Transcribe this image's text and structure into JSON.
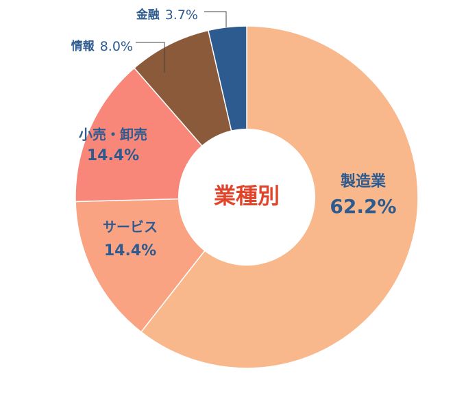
{
  "chart_data": {
    "type": "donut",
    "title": "業種別",
    "categories": [
      "製造業",
      "サービス",
      "小売・卸売",
      "情報",
      "金融"
    ],
    "values": [
      62.2,
      14.4,
      14.4,
      8.0,
      3.7
    ],
    "value_labels": [
      "62.2%",
      "14.4%",
      "14.4%",
      "8.0%",
      "3.7%"
    ],
    "colors": [
      "#f8b88b",
      "#f9a383",
      "#f8877a",
      "#8a5a3b",
      "#2e5b8f"
    ]
  }
}
